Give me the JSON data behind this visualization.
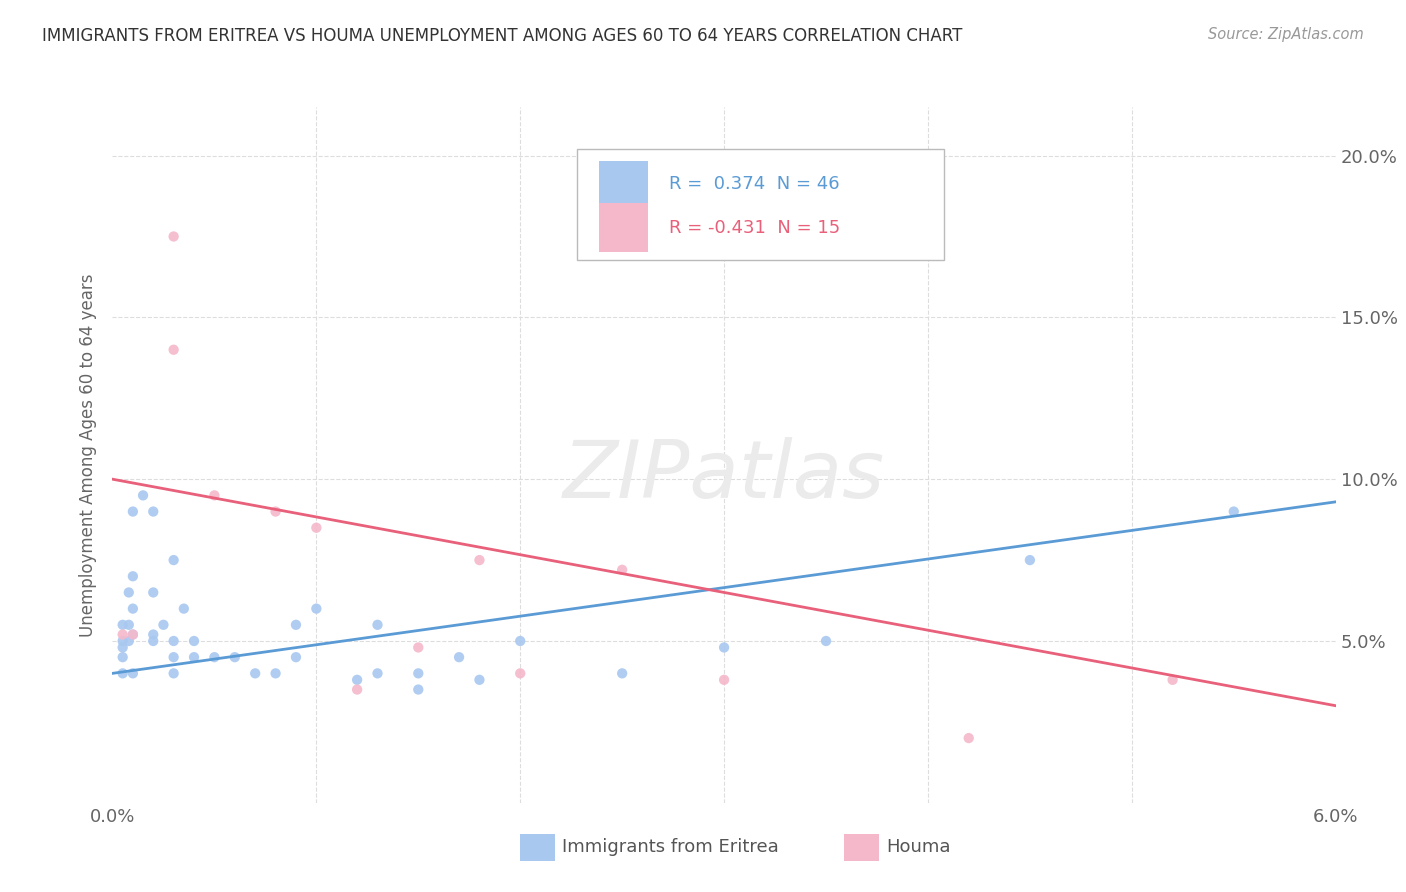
{
  "title": "IMMIGRANTS FROM ERITREA VS HOUMA UNEMPLOYMENT AMONG AGES 60 TO 64 YEARS CORRELATION CHART",
  "source": "Source: ZipAtlas.com",
  "ylabel": "Unemployment Among Ages 60 to 64 years",
  "xlabel_blue": "Immigrants from Eritrea",
  "xlabel_pink": "Houma",
  "xlim": [
    0.0,
    0.06
  ],
  "ylim": [
    0.0,
    0.215
  ],
  "ytick_positions": [
    0.05,
    0.1,
    0.15,
    0.2
  ],
  "ytick_labels": [
    "5.0%",
    "10.0%",
    "15.0%",
    "20.0%"
  ],
  "xtick_positions": [
    0.0,
    0.06
  ],
  "xtick_labels": [
    "0.0%",
    "6.0%"
  ],
  "legend_r_blue": "R =  0.374",
  "legend_n_blue": "N = 46",
  "legend_r_pink": "R = -0.431",
  "legend_n_pink": "N = 15",
  "blue_color": "#a8c8f0",
  "pink_color": "#f5b8cb",
  "line_blue": "#5b9bd5",
  "line_pink": "#e8607a",
  "watermark": "ZIPatlas",
  "blue_scatter": [
    [
      0.002,
      0.052
    ],
    [
      0.001,
      0.06
    ],
    [
      0.001,
      0.052
    ],
    [
      0.0005,
      0.05
    ],
    [
      0.001,
      0.07
    ],
    [
      0.001,
      0.09
    ],
    [
      0.0008,
      0.065
    ],
    [
      0.0008,
      0.055
    ],
    [
      0.0008,
      0.05
    ],
    [
      0.0005,
      0.048
    ],
    [
      0.0005,
      0.055
    ],
    [
      0.0005,
      0.045
    ],
    [
      0.0005,
      0.04
    ],
    [
      0.001,
      0.04
    ],
    [
      0.0015,
      0.095
    ],
    [
      0.002,
      0.09
    ],
    [
      0.002,
      0.065
    ],
    [
      0.002,
      0.05
    ],
    [
      0.0025,
      0.055
    ],
    [
      0.003,
      0.075
    ],
    [
      0.003,
      0.05
    ],
    [
      0.003,
      0.045
    ],
    [
      0.003,
      0.04
    ],
    [
      0.0035,
      0.06
    ],
    [
      0.004,
      0.05
    ],
    [
      0.004,
      0.045
    ],
    [
      0.005,
      0.045
    ],
    [
      0.006,
      0.045
    ],
    [
      0.007,
      0.04
    ],
    [
      0.008,
      0.04
    ],
    [
      0.009,
      0.055
    ],
    [
      0.009,
      0.045
    ],
    [
      0.01,
      0.06
    ],
    [
      0.012,
      0.038
    ],
    [
      0.013,
      0.04
    ],
    [
      0.013,
      0.055
    ],
    [
      0.015,
      0.035
    ],
    [
      0.015,
      0.04
    ],
    [
      0.017,
      0.045
    ],
    [
      0.018,
      0.038
    ],
    [
      0.02,
      0.05
    ],
    [
      0.025,
      0.04
    ],
    [
      0.03,
      0.048
    ],
    [
      0.035,
      0.05
    ],
    [
      0.045,
      0.075
    ],
    [
      0.055,
      0.09
    ]
  ],
  "pink_scatter": [
    [
      0.0005,
      0.052
    ],
    [
      0.001,
      0.052
    ],
    [
      0.003,
      0.14
    ],
    [
      0.003,
      0.175
    ],
    [
      0.005,
      0.095
    ],
    [
      0.008,
      0.09
    ],
    [
      0.01,
      0.085
    ],
    [
      0.012,
      0.035
    ],
    [
      0.015,
      0.048
    ],
    [
      0.018,
      0.075
    ],
    [
      0.02,
      0.04
    ],
    [
      0.025,
      0.072
    ],
    [
      0.03,
      0.038
    ],
    [
      0.042,
      0.02
    ],
    [
      0.052,
      0.038
    ]
  ],
  "blue_line_x": [
    0.0,
    0.06
  ],
  "blue_line_y": [
    0.04,
    0.093
  ],
  "pink_line_x": [
    0.0,
    0.06
  ],
  "pink_line_y": [
    0.1,
    0.03
  ]
}
